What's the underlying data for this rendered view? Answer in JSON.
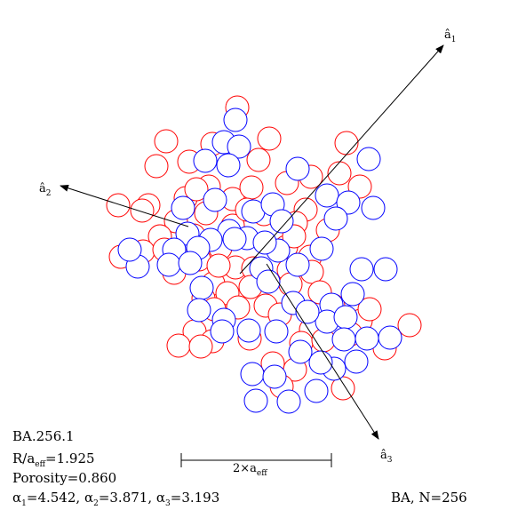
{
  "figure": {
    "id_label": "BA.256.1",
    "radius_ratio": {
      "lhs": "R/a",
      "sub": "eff",
      "rhs": "=1.925"
    },
    "porosity": "Porosity=0.860",
    "alphas": [
      {
        "sym": "α",
        "sub": "1",
        "val": "=4.542,"
      },
      {
        "sym": "α",
        "sub": "2",
        "val": "=3.871,"
      },
      {
        "sym": "α",
        "sub": "3",
        "val": "=3.193"
      }
    ],
    "model_label": "BA, N=256",
    "scale_bar": {
      "prefix": "2×a",
      "sub": "eff"
    },
    "axes": [
      {
        "name": "â",
        "sub": "1"
      },
      {
        "name": "â",
        "sub": "2"
      },
      {
        "name": "â",
        "sub": "3"
      }
    ]
  },
  "colors": {
    "front_spheres": "#0000ff",
    "back_spheres": "#ff0000",
    "axis": "#000000"
  }
}
